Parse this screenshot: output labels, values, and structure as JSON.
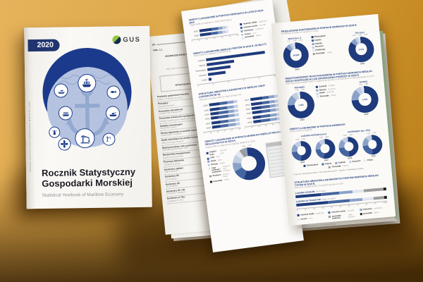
{
  "palette": [
    "#1F3B7D",
    "#44659F",
    "#8AA2C8",
    "#C2CEE3",
    "#DFE5F0",
    "#9C9C9C",
    "#222222"
  ],
  "cover": {
    "year": "2020",
    "logo": "GUS",
    "title_line1": "Rocznik Statystyczny",
    "title_line2": "Gospodarki Morskiej",
    "subtitle": "Statistical Yearbook of Maritime Economy",
    "spine": "ROCZNIK STATYSTYCZNY GOSPODARKI MORSKIEJ 2020"
  },
  "left_page": {
    "page_number": "24",
    "ref": "TABL. 1.1",
    "title": "WAŻNIEJSZE DANE O GOSPODARCE MORSKIEJ (dok.)",
    "title_en": "Major data on maritime economy (cont.)",
    "spec": "WYSZCZEGÓLNIENIE",
    "spec_en": "Specification",
    "rows": [
      {
        "pl": "Podmioty gospodarki morskiej",
        "en": "Entities of maritime economy"
      },
      {
        "pl": "Pracujący",
        "en": "Employed persons"
      },
      {
        "pl": "Przeciętne zatrudnienie",
        "en": "Average paid employment"
      },
      {
        "pl": "Przeciętne miesięczne wynagrodzenia brutto",
        "en": "Average monthly gross wages and salaries"
      },
      {
        "pl": "Nakłady inwestycyjne",
        "en": "Investment outlays"
      },
      {
        "pl": "Obroty ładunkowe w portach morskich",
        "en": "Cargo traffic in seaports"
      },
      {
        "pl": "Statki wchodzące do portów morskich",
        "en": "Ships arriving at seaports"
      },
      {
        "pl": "Międzynarodowy ruch pasażerów",
        "en": "International passenger traffic"
      },
      {
        "pl": "Morska flota transportowa",
        "en": "Maritime transport fleet"
      },
      {
        "pl": "Przewozy ładunków",
        "en": "Transport of goods"
      },
      {
        "pl": "Kontenery ogółem",
        "en": "Total containers"
      },
      {
        "pl": "Kontenery 20'",
        "en": "20' containers"
      },
      {
        "pl": "Kontenery 40'",
        "en": "40' containers"
      },
      {
        "pl": "Kontenery 20' i 40'",
        "en": "20' and 40' containers"
      },
      {
        "pl": "Kontenery w TEU",
        "en": "Containers in TEU"
      }
    ]
  },
  "chart_data": {
    "middle_top": {
      "type": "stacked",
      "xmax": 60,
      "title": "OBROTY ŁADUNKOWE W PORTACH MORSKICH W LATACH 2018–2019",
      "subtitle": "Cargo traffic in seaports in 2018–2019 (mln t)",
      "rows": [
        {
          "label": "2019",
          "segments": [
            20,
            10,
            7,
            5,
            4
          ]
        },
        {
          "label": "2018",
          "segments": [
            18,
            11,
            7,
            5,
            4
          ]
        }
      ],
      "colors": [
        0,
        1,
        2,
        3,
        4
      ],
      "axis": [
        "0",
        "10",
        "20",
        "30",
        "40",
        "50",
        "60"
      ],
      "legend": [
        {
          "t": "masowe ciekłe",
          "en": "liquid bulk",
          "c": 0
        },
        {
          "t": "masowe suche",
          "en": "dry bulk",
          "c": 1
        },
        {
          "t": "kontenery",
          "en": "containers",
          "c": 2
        },
        {
          "t": "toczne",
          "en": "ro-ro",
          "c": 3
        },
        {
          "t": "pozostałe",
          "en": "others",
          "c": 4
        }
      ]
    },
    "middle_ports": {
      "type": "hbar",
      "xmax": 52,
      "colors": [
        0
      ],
      "title": "OBROTY ŁADUNKOWE WEDŁUG PORTÓW W 2019 R. (W MLN T)",
      "subtitle": "Cargo traffic by seaports in 2019 (mln t)",
      "rows": [
        {
          "label": "Gdańsk",
          "value": 46.1
        },
        {
          "label": "Gdynia",
          "value": 21.5
        },
        {
          "label": "Świnoujście",
          "value": 17.8
        },
        {
          "label": "Szczecin",
          "value": 13.9
        },
        {
          "label": "Police",
          "value": 2.1
        }
      ],
      "axis": [
        "0",
        "10",
        "20",
        "30",
        "40",
        "50"
      ]
    },
    "middle_groups": {
      "title": "STRUKTURA OBROTÓW ŁADUNKOWYCH WEDŁUG GRUP ŁADUNKÓW (W %)",
      "subtitle": "Structure of cargo traffic by cargo groups (%)",
      "a": {
        "type": "stacked",
        "xmax": 100,
        "colors": [
          0,
          1,
          2,
          3
        ],
        "rows": [
          {
            "label": "2019",
            "segments": [
              38,
              27,
              22,
              13
            ]
          },
          {
            "label": "2018",
            "segments": [
              35,
              28,
              23,
              14
            ]
          },
          {
            "label": "2019",
            "segments": [
              30,
              34,
              22,
              14
            ]
          },
          {
            "label": "2018",
            "segments": [
              28,
              35,
              23,
              14
            ]
          },
          {
            "label": "2019",
            "segments": [
              33,
              26,
              25,
              16
            ]
          },
          {
            "label": "2018",
            "segments": [
              31,
              27,
              26,
              16
            ]
          }
        ],
        "axis": [
          "0",
          "20",
          "40",
          "60",
          "80",
          "100"
        ]
      },
      "b": {
        "type": "stacked",
        "xmax": 100,
        "colors": [
          0,
          1,
          2,
          3
        ],
        "rows": [
          {
            "label": "2019",
            "segments": [
              42,
              24,
              20,
              14
            ]
          },
          {
            "label": "2018",
            "segments": [
              40,
              25,
              21,
              14
            ]
          },
          {
            "label": "2019",
            "segments": [
              36,
              30,
              20,
              14
            ]
          },
          {
            "label": "2018",
            "segments": [
              34,
              31,
              21,
              14
            ]
          },
          {
            "label": "2019",
            "segments": [
              29,
              33,
              24,
              14
            ]
          },
          {
            "label": "2018",
            "segments": [
              27,
              34,
              25,
              14
            ]
          }
        ],
        "axis": [
          "0",
          "20",
          "40",
          "60",
          "80",
          "100"
        ]
      }
    },
    "middle_donut": {
      "title": "OBROTY ŁADUNKOWE W PORTACH MORSKICH WEDŁUG RELACJI ŻEGLUGOWYCH W 2019 R.",
      "subtitle": "Cargo traffic in seaports by shipping relations in 2019",
      "d": {
        "type": "donuts",
        "items": [
          {
            "size": 46,
            "callouts": [
              "4,8%",
              "7,4%"
            ],
            "segments": [
              {
                "v": 57,
                "c": 0
              },
              {
                "v": 12,
                "c": 1
              },
              {
                "v": 9,
                "c": 2
              },
              {
                "v": 8,
                "c": 3
              },
              {
                "v": 6,
                "c": 4
              },
              {
                "v": 5,
                "c": 5
              },
              {
                "v": 3,
                "c": 2
              }
            ]
          }
        ]
      },
      "legend": [
        {
          "t": "węgiel i koks",
          "en": "coal and coke",
          "c": 0
        },
        {
          "t": "rudy",
          "en": "ores",
          "c": 1
        },
        {
          "t": "zboże",
          "en": "grain",
          "c": 2
        },
        {
          "t": "drewno",
          "en": "timber",
          "c": 3
        },
        {
          "t": "ropa naftowa i przetwory",
          "en": "crude oil and products",
          "c": 4
        },
        {
          "t": "drobnica",
          "en": "general cargo",
          "c": 5
        },
        {
          "t": "pozostałe",
          "en": "others",
          "c": 6
        }
      ]
    },
    "r1": {
      "title": "PRZEŁADUNKI KONTENERÓW W PORTACH MORSKICH W 2019 R.",
      "subtitle": "Containers handled in seaports in 2019",
      "a": {
        "type": "donuts",
        "items": [
          {
            "size": 36,
            "heading": "WAGA (tys. t)",
            "callouts": [
              "1,7%",
              "3,0%",
              "5,1%"
            ],
            "center": "19 505",
            "foot": "2019",
            "segments": [
              {
                "v": 87,
                "c": 0
              },
              {
                "v": 6,
                "c": 2
              },
              {
                "v": 4,
                "c": 3
              },
              {
                "v": 3,
                "c": 4
              }
            ]
          }
        ]
      },
      "b": {
        "type": "donuts",
        "items": [
          {
            "size": 36,
            "heading": "TEU (tys.)",
            "callouts": [
              "1,2%",
              "2,3%",
              "3,1%"
            ],
            "center": "3 074",
            "foot": "2019",
            "segments": [
              {
                "v": 86,
                "c": 0
              },
              {
                "v": 7,
                "c": 2
              },
              {
                "v": 4,
                "c": 3
              },
              {
                "v": 3,
                "c": 4
              }
            ]
          }
        ]
      },
      "legend": [
        {
          "t": "Świnoujście",
          "c": 0
        },
        {
          "t": "Gdynia",
          "c": 1
        },
        {
          "t": "Gdańsk",
          "c": 2
        },
        {
          "t": "Szczecin",
          "c": 3
        },
        {
          "t": "Kołobrzeg",
          "c": 4
        },
        {
          "t": "Pozostałe",
          "en": "Others",
          "c": 5
        }
      ]
    },
    "r2": {
      "title": "MIĘDZYNARODOWY RUCH PASAŻERÓW W PORTACH MORSKICH WEDŁUG KRAJU ROZPOCZĘCIA LUB ZAKOŃCZENIA PODRÓŻY W 2019 R.",
      "subtitle": "International passenger traffic in seaports by country of embarkation or disembarkation in 2019",
      "a": {
        "type": "donuts",
        "items": [
          {
            "size": 38,
            "heading": "PRZYWÓZ",
            "callouts": [
              "1,4%",
              "3,1%"
            ],
            "center": "1 402",
            "foot": "2019",
            "segments": [
              {
                "v": 76,
                "c": 0
              },
              {
                "v": 13,
                "c": 2
              },
              {
                "v": 7,
                "c": 3
              },
              {
                "v": 4,
                "c": 4
              }
            ]
          }
        ]
      },
      "b": {
        "type": "donuts",
        "items": [
          {
            "size": 38,
            "heading": "WYWÓZ",
            "callouts": [
              "1,2%",
              "2,8%"
            ],
            "center": "1 411",
            "foot": "2019",
            "segments": [
              {
                "v": 75,
                "c": 0
              },
              {
                "v": 14,
                "c": 2
              },
              {
                "v": 7,
                "c": 3
              },
              {
                "v": 4,
                "c": 4
              }
            ]
          }
        ]
      },
      "legend": [
        {
          "t": "Szwecja",
          "en": "Sweden",
          "c": 0
        },
        {
          "t": "Niemcy",
          "en": "Germany",
          "c": 2
        },
        {
          "t": "Dania",
          "en": "Denmark",
          "c": 3
        },
        {
          "t": "Pozostałe",
          "en": "Others",
          "c": 4
        }
      ]
    },
    "r3": {
      "title": "OBROTY ŁADUNKOWE W PORTACH MORSKICH",
      "subtitle": "Cargo traffic in seaports",
      "group1": "ŁADUNKI OGÓŁEM (mln t)",
      "group2": "KONTENERY (tys. TEU)",
      "d": {
        "type": "donuts",
        "items": [
          {
            "size": 28,
            "foot": "2018",
            "callouts": [
              "5,3%",
              "8,1%"
            ],
            "segments": [
              {
                "v": 52,
                "c": 0
              },
              {
                "v": 22,
                "c": 1
              },
              {
                "v": 14,
                "c": 2
              },
              {
                "v": 12,
                "c": 3
              }
            ]
          },
          {
            "size": 28,
            "foot": "2019",
            "callouts": [
              "5,0%",
              "8,3%"
            ],
            "segments": [
              {
                "v": 54,
                "c": 0
              },
              {
                "v": 21,
                "c": 1
              },
              {
                "v": 14,
                "c": 2
              },
              {
                "v": 11,
                "c": 3
              }
            ]
          },
          {
            "size": 28,
            "foot": "2018",
            "callouts": [
              "4,2%",
              "7,6%"
            ],
            "segments": [
              {
                "v": 50,
                "c": 0
              },
              {
                "v": 24,
                "c": 1
              },
              {
                "v": 15,
                "c": 2
              },
              {
                "v": 11,
                "c": 3
              }
            ]
          },
          {
            "size": 28,
            "foot": "2019",
            "callouts": [
              "4,4%",
              "7,2%"
            ],
            "segments": [
              {
                "v": 51,
                "c": 0
              },
              {
                "v": 23,
                "c": 1
              },
              {
                "v": 15,
                "c": 2
              },
              {
                "v": 11,
                "c": 3
              }
            ]
          }
        ]
      },
      "legend": [
        {
          "t": "Świnoujście",
          "c": 0
        },
        {
          "t": "Gdynia",
          "c": 1
        },
        {
          "t": "Gdańsk",
          "c": 2
        },
        {
          "t": "Szczecin",
          "c": 3
        },
        {
          "t": "Police",
          "c": 4
        },
        {
          "t": "Pozostałe",
          "en": "Others",
          "c": 5
        }
      ],
      "footnote": "a Łącznie z jednostkami pustymi.   b Bez jednostek pustych.   • Zgodnie z metodologią Eurostatu."
    },
    "r4": {
      "title": "STRUKTURA OBROTÓW ŁADUNKOWYCH PORTÓW MORSKICH WEDŁUG TYPÓW W 2019 R.",
      "subtitle": "Structure of cargo traffic of seaports by type in 2019",
      "bars": {
        "type": "stacked",
        "top": true,
        "xmax": 100,
        "colors": [
          0,
          1,
          2,
          4,
          5,
          6
        ],
        "rows": [
          {
            "label": "ŁADUNKI OGÓŁEM",
            "sub": "Total cargo",
            "segments": [
              28,
              20,
              15,
              12,
              22,
              3
            ]
          },
          {
            "label": "ŁADUNKI W TRANZYCIE",
            "sub": "Cargo in transit",
            "segments": [
              35,
              24,
              14,
              12,
              12,
              3
            ]
          }
        ],
        "axis": [
          "0",
          "10",
          "20",
          "30",
          "40",
          "50",
          "60",
          "70",
          "80",
          "90",
          "100%"
        ]
      },
      "legend": [
        {
          "t": "masowe ciekłe",
          "en": "liquid bulk",
          "c": 0
        },
        {
          "t": "masowe suche",
          "en": "dry bulk",
          "c": 1
        },
        {
          "t": "kontenery",
          "en": "containers",
          "c": 2
        },
        {
          "t": "toczne",
          "en": "ro-ro",
          "c": 4
        },
        {
          "t": "pozostała drobnica",
          "en": "other general",
          "c": 5
        },
        {
          "t": "pozostałe",
          "en": "others",
          "c": 6
        }
      ],
      "footnote": "• Łącznie z masą opakowań. / Including packaging."
    }
  }
}
